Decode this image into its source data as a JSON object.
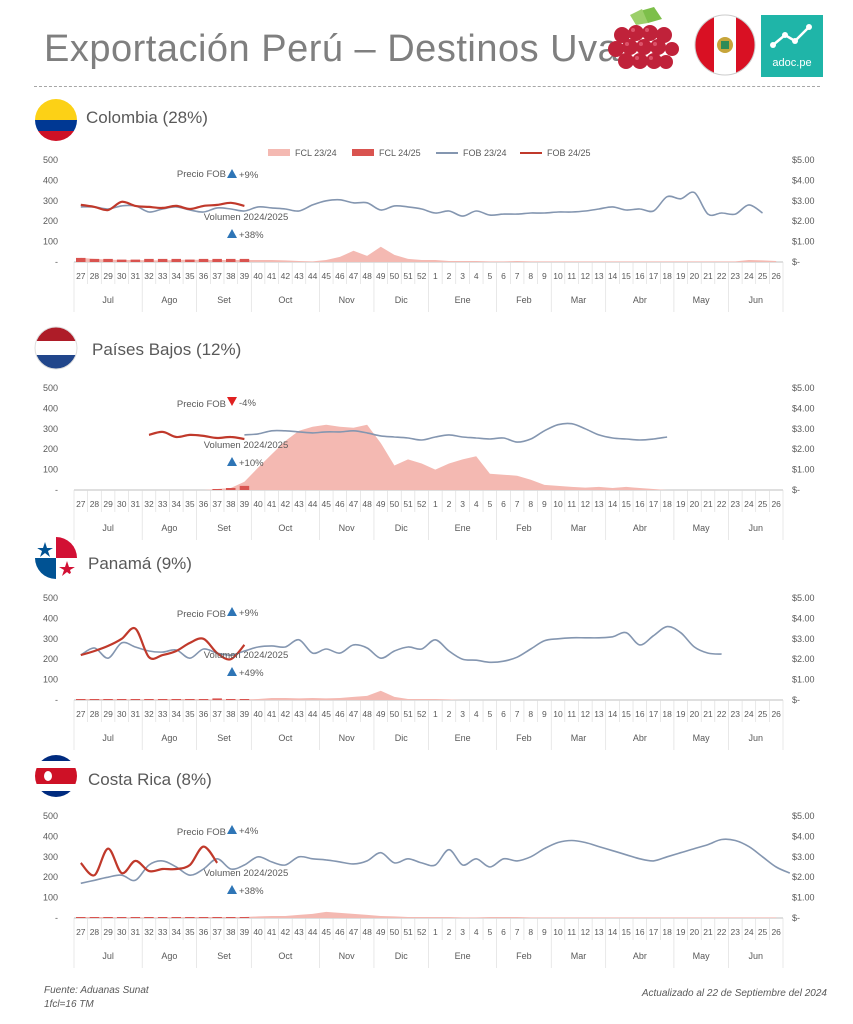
{
  "header": {
    "title": "Exportación Perú – Destinos Uva",
    "logo_text": "adoc.pe"
  },
  "legend": [
    "FCL 23/24",
    "FCL 24/25",
    "FOB 23/24",
    "FOB 24/25"
  ],
  "colors": {
    "fcl_2324": "#f4b9b2",
    "fcl_2425": "#d9534f",
    "fob_2324": "#8496b0",
    "fob_2425": "#c0392b",
    "up": "#2e75b6",
    "down": "#e02020",
    "grid": "#d9d9d9"
  },
  "axis": {
    "left_ticks": [
      "500",
      "400",
      "300",
      "200",
      "100",
      "-"
    ],
    "right_ticks": [
      "$5.00",
      "$4.00",
      "$3.00",
      "$2.00",
      "$1.00",
      "$-"
    ],
    "weeks": [
      "27",
      "28",
      "29",
      "30",
      "31",
      "32",
      "33",
      "34",
      "35",
      "36",
      "37",
      "38",
      "39",
      "40",
      "41",
      "42",
      "43",
      "44",
      "45",
      "46",
      "47",
      "48",
      "49",
      "50",
      "51",
      "52",
      "1",
      "2",
      "3",
      "4",
      "5",
      "6",
      "7",
      "8",
      "9",
      "10",
      "11",
      "12",
      "13",
      "14",
      "15",
      "16",
      "17",
      "18",
      "19",
      "20",
      "21",
      "22",
      "23",
      "24",
      "25",
      "26"
    ],
    "months": [
      {
        "name": "Jul",
        "start": 0,
        "end": 5
      },
      {
        "name": "Ago",
        "start": 5,
        "end": 9
      },
      {
        "name": "Set",
        "start": 9,
        "end": 13
      },
      {
        "name": "Oct",
        "start": 13,
        "end": 18
      },
      {
        "name": "Nov",
        "start": 18,
        "end": 22
      },
      {
        "name": "Dic",
        "start": 22,
        "end": 26
      },
      {
        "name": "Ene",
        "start": 26,
        "end": 31
      },
      {
        "name": "Feb",
        "start": 31,
        "end": 35
      },
      {
        "name": "Mar",
        "start": 35,
        "end": 39
      },
      {
        "name": "Abr",
        "start": 39,
        "end": 44
      },
      {
        "name": "May",
        "start": 44,
        "end": 48
      },
      {
        "name": "Jun",
        "start": 48,
        "end": 52
      }
    ]
  },
  "chart_data": [
    {
      "type": "line",
      "title": "Colombia (28%)",
      "ylim": [
        0,
        500
      ],
      "y2lim": [
        0,
        5
      ],
      "annot_price_label": "Precio FOB",
      "annot_price": "+9%",
      "annot_price_dir": "up",
      "annot_volume_label": "Volumen 2024/2025",
      "annot_volume": "+38%",
      "annot_volume_dir": "up",
      "series": [
        {
          "name": "FCL 23/24",
          "kind": "area",
          "values": [
            20,
            15,
            12,
            10,
            10,
            8,
            8,
            10,
            12,
            10,
            10,
            10,
            10,
            10,
            10,
            8,
            5,
            3,
            10,
            25,
            55,
            30,
            75,
            35,
            15,
            10,
            10,
            5,
            5,
            5,
            3,
            3,
            5,
            3,
            3,
            3,
            3,
            3,
            3,
            3,
            3,
            3,
            3,
            3,
            3,
            3,
            3,
            3,
            3,
            10,
            8,
            5
          ]
        },
        {
          "name": "FCL 24/25",
          "kind": "bars",
          "values": [
            20,
            15,
            15,
            12,
            12,
            15,
            15,
            15,
            12,
            15,
            15,
            15,
            15
          ]
        },
        {
          "name": "FOB 23/24",
          "kind": "line",
          "values": [
            2.7,
            2.7,
            2.6,
            2.75,
            2.75,
            2.45,
            2.6,
            2.7,
            2.55,
            2.45,
            2.65,
            2.6,
            2.5,
            2.7,
            2.65,
            2.6,
            2.5,
            2.8,
            3.0,
            3.05,
            2.9,
            2.9,
            2.55,
            2.75,
            2.7,
            2.6,
            2.4,
            2.5,
            2.25,
            2.5,
            2.3,
            2.35,
            2.35,
            2.4,
            2.4,
            2.45,
            2.45,
            2.5,
            2.6,
            2.7,
            2.55,
            2.6,
            2.5,
            3.2,
            3.1,
            3.4,
            2.35,
            2.4,
            2.35,
            2.8,
            2.4
          ]
        },
        {
          "name": "FOB 24/25",
          "kind": "line",
          "values": [
            2.8,
            2.7,
            2.55,
            2.95,
            2.75,
            2.7,
            2.65,
            2.75,
            2.6,
            2.75,
            2.8,
            2.9,
            2.75
          ]
        }
      ]
    },
    {
      "type": "line",
      "title": "Países Bajos (12%)",
      "ylim": [
        0,
        500
      ],
      "y2lim": [
        0,
        5
      ],
      "annot_price_label": "Precio FOB",
      "annot_price": "-4%",
      "annot_price_dir": "down",
      "annot_volume_label": "Volumen 2024/2025",
      "annot_volume": "+10%",
      "annot_volume_dir": "up",
      "series": [
        {
          "name": "FCL 23/24",
          "kind": "area",
          "values": [
            0,
            0,
            0,
            0,
            0,
            0,
            0,
            0,
            0,
            0,
            5,
            10,
            40,
            110,
            175,
            240,
            290,
            310,
            320,
            310,
            305,
            320,
            230,
            120,
            150,
            130,
            100,
            130,
            150,
            165,
            80,
            75,
            70,
            50,
            25,
            20,
            15,
            12,
            15,
            10,
            15,
            10,
            5,
            0,
            0,
            0,
            0,
            0,
            0,
            0,
            0,
            0
          ]
        },
        {
          "name": "FCL 24/25",
          "kind": "bars",
          "values": [
            0,
            0,
            0,
            0,
            0,
            0,
            0,
            0,
            0,
            0,
            5,
            10,
            20
          ]
        },
        {
          "name": "FOB 23/24",
          "kind": "line",
          "values": [
            null,
            null,
            null,
            null,
            null,
            null,
            null,
            null,
            null,
            null,
            null,
            null,
            2.7,
            2.75,
            2.9,
            2.9,
            2.85,
            2.8,
            2.85,
            2.85,
            2.9,
            2.8,
            2.65,
            2.6,
            2.55,
            2.45,
            2.6,
            2.7,
            2.6,
            2.55,
            2.5,
            2.55,
            2.35,
            2.5,
            2.9,
            3.2,
            3.25,
            3.0,
            2.7,
            2.55,
            2.5,
            2.45,
            2.5,
            2.6
          ]
        },
        {
          "name": "FOB 24/25",
          "kind": "line",
          "values": [
            null,
            null,
            null,
            null,
            null,
            2.7,
            2.85,
            2.6,
            2.7,
            2.65,
            2.55,
            2.6,
            2.5
          ]
        }
      ]
    },
    {
      "type": "line",
      "title": "Panamá (9%)",
      "ylim": [
        0,
        500
      ],
      "y2lim": [
        0,
        5
      ],
      "annot_price_label": "Precio FOB",
      "annot_price": "+9%",
      "annot_price_dir": "up",
      "annot_volume_label": "Volumen 2024/2025",
      "annot_volume": "+49%",
      "annot_volume_dir": "up",
      "series": [
        {
          "name": "FCL 23/24",
          "kind": "area",
          "values": [
            5,
            5,
            5,
            3,
            3,
            3,
            3,
            5,
            5,
            3,
            3,
            3,
            3,
            5,
            10,
            10,
            8,
            10,
            8,
            10,
            15,
            20,
            45,
            15,
            5,
            5,
            5,
            3,
            0,
            0,
            0,
            0,
            0,
            0,
            0,
            0,
            0,
            0,
            0,
            0,
            0,
            0,
            0,
            0,
            0,
            0,
            0,
            0,
            0,
            0,
            0,
            0
          ]
        },
        {
          "name": "FCL 24/25",
          "kind": "bars",
          "values": [
            5,
            5,
            5,
            5,
            5,
            5,
            5,
            5,
            5,
            5,
            8,
            5,
            5
          ]
        },
        {
          "name": "FOB 23/24",
          "kind": "line",
          "values": [
            2.2,
            2.55,
            2.05,
            2.8,
            2.6,
            2.4,
            2.35,
            2.45,
            2.05,
            2.5,
            2.3,
            2.2,
            2.4,
            2.6,
            2.65,
            2.6,
            2.95,
            2.3,
            2.5,
            2.3,
            2.7,
            2.55,
            2.05,
            2.4,
            2.6,
            2.5,
            2.95,
            2.4,
            2.0,
            1.95,
            1.85,
            1.9,
            2.1,
            2.5,
            2.9,
            3.0,
            3.05,
            3.05,
            3.05,
            3.1,
            3.3,
            2.7,
            3.15,
            3.6,
            3.3,
            2.6,
            2.3,
            2.25
          ]
        },
        {
          "name": "FOB 24/25",
          "kind": "line",
          "values": [
            2.2,
            2.4,
            2.65,
            3.0,
            3.5,
            2.1,
            2.2,
            2.4,
            2.8,
            3.0,
            2.3,
            2.0,
            2.7
          ]
        }
      ]
    },
    {
      "type": "line",
      "title": "Costa Rica (8%)",
      "ylim": [
        0,
        500
      ],
      "y2lim": [
        0,
        5
      ],
      "annot_price_label": "Precio FOB",
      "annot_price": "+4%",
      "annot_price_dir": "up",
      "annot_volume_label": "Volumen 2024/2025",
      "annot_volume": "+38%",
      "annot_volume_dir": "up",
      "series": [
        {
          "name": "FCL 23/24",
          "kind": "area",
          "values": [
            5,
            5,
            5,
            3,
            3,
            3,
            3,
            3,
            5,
            5,
            5,
            5,
            5,
            8,
            10,
            10,
            15,
            20,
            30,
            25,
            20,
            15,
            10,
            8,
            5,
            5,
            5,
            5,
            3,
            3,
            5,
            5,
            5,
            3,
            3,
            3,
            3,
            3,
            3,
            3,
            3,
            3,
            3,
            3,
            3,
            3,
            3,
            3,
            3,
            3,
            3,
            3
          ]
        },
        {
          "name": "FCL 24/25",
          "kind": "bars",
          "values": [
            5,
            5,
            5,
            5,
            5,
            5,
            5,
            5,
            5,
            5,
            5,
            5,
            5
          ]
        },
        {
          "name": "FOB 23/24",
          "kind": "line",
          "values": [
            1.7,
            1.85,
            2.0,
            2.1,
            1.85,
            2.6,
            2.8,
            2.5,
            2.1,
            2.4,
            2.9,
            2.4,
            2.6,
            3.0,
            2.75,
            2.6,
            3.0,
            2.9,
            2.85,
            2.75,
            2.65,
            2.8,
            3.2,
            2.7,
            2.9,
            2.7,
            2.6,
            3.35,
            2.6,
            2.9,
            2.5,
            2.9,
            2.8,
            3.0,
            3.4,
            3.7,
            3.8,
            3.7,
            3.5,
            3.3,
            3.1,
            2.9,
            2.8,
            3.0,
            3.2,
            3.4,
            3.6,
            3.85,
            3.8,
            3.5,
            3.0,
            2.5,
            2.2
          ]
        },
        {
          "name": "FOB 24/25",
          "kind": "line",
          "values": [
            2.7,
            2.1,
            3.4,
            2.2,
            2.8,
            2.3,
            2.4,
            2.4,
            2.6,
            3.5,
            2.7
          ]
        }
      ]
    }
  ],
  "footer": {
    "source_line1": "Fuente: Aduanas Sunat",
    "source_line2": "1fcl=16 TM",
    "updated": "Actualizado al 22 de Septiembre del 2024"
  }
}
